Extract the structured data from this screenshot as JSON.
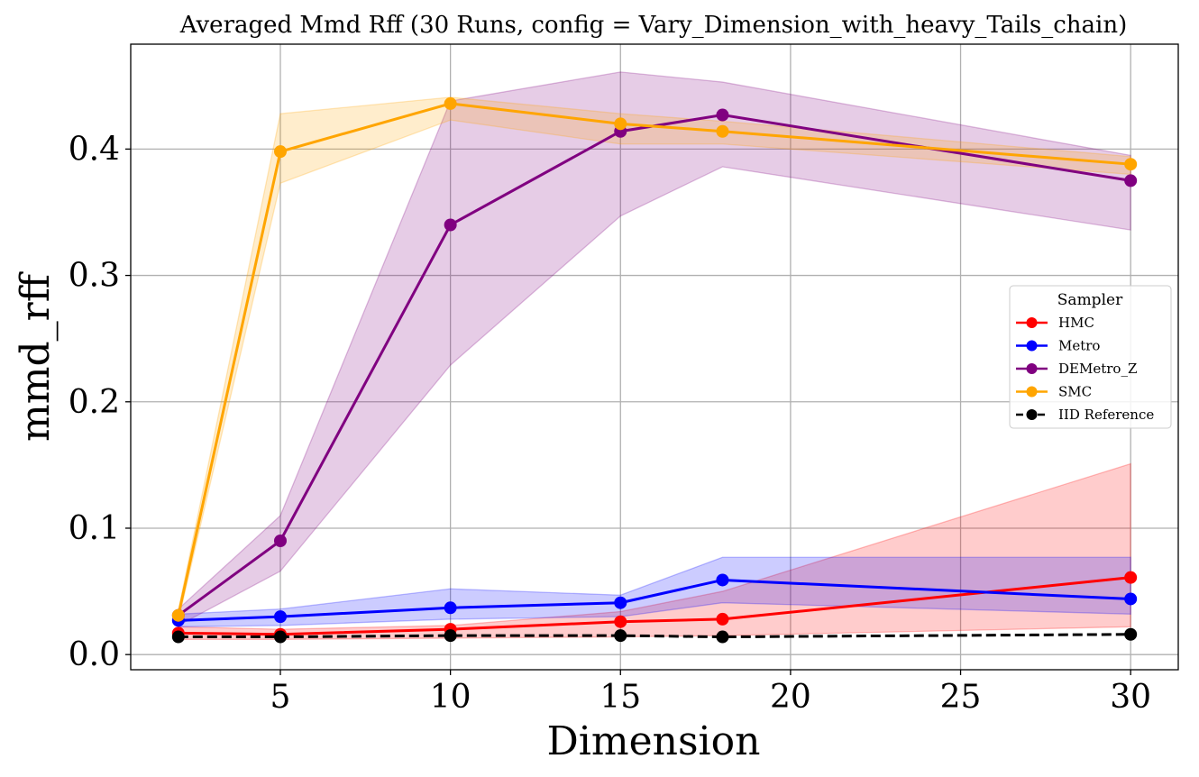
{
  "chart_data": {
    "type": "line",
    "title": "Averaged Mmd Rff (30 Runs, config = Vary_Dimension_with_heavy_Tails_chain)",
    "xlabel": "Dimension",
    "ylabel": "mmd_rff",
    "x": [
      2,
      5,
      10,
      15,
      18,
      30
    ],
    "xlim": [
      0.6,
      31.4
    ],
    "ylim": [
      -0.012,
      0.483
    ],
    "xticks": [
      5,
      10,
      15,
      20,
      25,
      30
    ],
    "xtick_labels": [
      "5",
      "10",
      "15",
      "20",
      "25",
      "30"
    ],
    "yticks": [
      0.0,
      0.1,
      0.2,
      0.3,
      0.4
    ],
    "ytick_labels": [
      "0.0",
      "0.1",
      "0.2",
      "0.3",
      "0.4"
    ],
    "grid": true,
    "legend": {
      "title": "Sampler",
      "placement": "center-right"
    },
    "series": [
      {
        "name": "HMC",
        "color": "#ff0000",
        "dashed": false,
        "values": [
          0.017,
          0.016,
          0.02,
          0.026,
          0.028,
          0.061
        ],
        "lower": [
          0.012,
          0.012,
          0.013,
          0.014,
          0.015,
          0.022
        ],
        "upper": [
          0.022,
          0.02,
          0.023,
          0.034,
          0.05,
          0.151
        ]
      },
      {
        "name": "Metro",
        "color": "#0000ff",
        "dashed": false,
        "values": [
          0.027,
          0.03,
          0.037,
          0.041,
          0.059,
          0.044
        ],
        "lower": [
          0.022,
          0.023,
          0.028,
          0.03,
          0.041,
          0.032
        ],
        "upper": [
          0.032,
          0.036,
          0.052,
          0.047,
          0.077,
          0.077
        ]
      },
      {
        "name": "DEMetro_Z",
        "color": "#800080",
        "dashed": false,
        "values": [
          0.031,
          0.09,
          0.34,
          0.414,
          0.427,
          0.375
        ],
        "lower": [
          0.023,
          0.066,
          0.229,
          0.347,
          0.386,
          0.336
        ],
        "upper": [
          0.036,
          0.11,
          0.438,
          0.461,
          0.453,
          0.395
        ]
      },
      {
        "name": "SMC",
        "color": "#ffa500",
        "dashed": false,
        "values": [
          0.031,
          0.398,
          0.436,
          0.42,
          0.414,
          0.388
        ],
        "lower": [
          0.027,
          0.373,
          0.423,
          0.404,
          0.404,
          0.38
        ],
        "upper": [
          0.035,
          0.428,
          0.441,
          0.428,
          0.422,
          0.394
        ]
      },
      {
        "name": "IID Reference",
        "color": "#000000",
        "dashed": true,
        "values": [
          0.014,
          0.014,
          0.015,
          0.015,
          0.014,
          0.016
        ]
      }
    ]
  }
}
